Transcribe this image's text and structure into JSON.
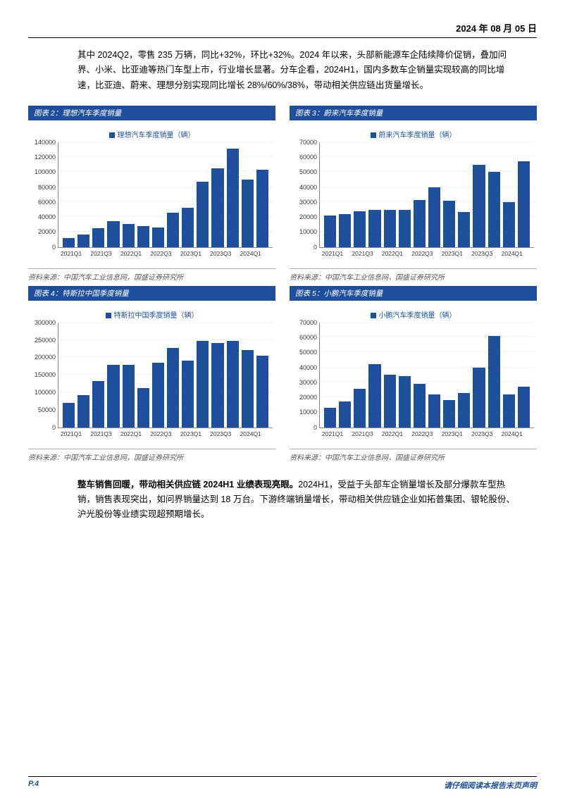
{
  "header": {
    "date": "2024 年 08 月 05 日"
  },
  "intro_text": "其中 2024Q2，零售 235 万辆，同比+32%，环比+32%。2024 年以来，头部新能源车企陆续降价促销，叠加问界、小米、比亚迪等热门车型上市，行业增长显著。分车企看，2024H1，国内多数车企销量实现较高的同比增速，比亚迪、蔚来、理想分别实现同比增长 28%/60%/38%，带动相关供应链出货量增长。",
  "conclusion_bold": "整车销售回暖，带动相关供应链 2024H1 业绩表现亮眼。",
  "conclusion_text": "2024H1，受益于头部车企销量增长及部分爆款车型热销，销售表现突出，如问界销量达到 18 万台。下游终端销量增长，带动相关供应链企业如拓普集团、银轮股份、沪光股份等业绩实现超预期增长。",
  "source_text": "资料来源：中国汽车工业信息网，国盛证券研究所",
  "xcats": [
    "2021Q1",
    "",
    "2021Q3",
    "",
    "2022Q1",
    "",
    "2022Q3",
    "",
    "2023Q1",
    "",
    "2023Q3",
    "",
    "2024Q1",
    ""
  ],
  "charts": {
    "c2": {
      "title": "图表 2：理想汽车季度销量",
      "legend": "理想汽车季度销量（辆）",
      "ymax": 140000,
      "ystep": 20000,
      "values": [
        12000,
        17000,
        25000,
        35000,
        31000,
        28000,
        26000,
        46000,
        52000,
        87000,
        105000,
        131000,
        90000,
        103000
      ],
      "bar_color": "#1f4e9c"
    },
    "c3": {
      "title": "图表 3：蔚来汽车季度销量",
      "legend": "蔚来汽车季度销量（辆）",
      "ymax": 70000,
      "ystep": 10000,
      "values": [
        21000,
        22000,
        24000,
        25000,
        25000,
        25000,
        31500,
        40000,
        31000,
        23500,
        55000,
        50000,
        30000,
        57000
      ],
      "bar_color": "#1f4e9c"
    },
    "c4": {
      "title": "图表 4：特斯拉中国季度销量",
      "legend": "特斯拉中国季度销量（辆）",
      "ymax": 300000,
      "ystep": 50000,
      "values": [
        69000,
        92000,
        133000,
        178000,
        178000,
        112000,
        185000,
        228000,
        190000,
        247000,
        242000,
        248000,
        220000,
        205000
      ],
      "bar_color": "#1f4e9c"
    },
    "c5": {
      "title": "图表 5：小鹏汽车季度销量",
      "legend": "小鹏汽车季度销量（辆）",
      "ymax": 70000,
      "ystep": 10000,
      "values": [
        13000,
        17500,
        25500,
        42000,
        35000,
        34000,
        29000,
        22000,
        18000,
        23000,
        40000,
        61000,
        22000,
        27000
      ],
      "bar_color": "#1f4e9c"
    }
  },
  "footer": {
    "page": "P.4",
    "disclaimer": "请仔细阅读本报告末页声明"
  }
}
